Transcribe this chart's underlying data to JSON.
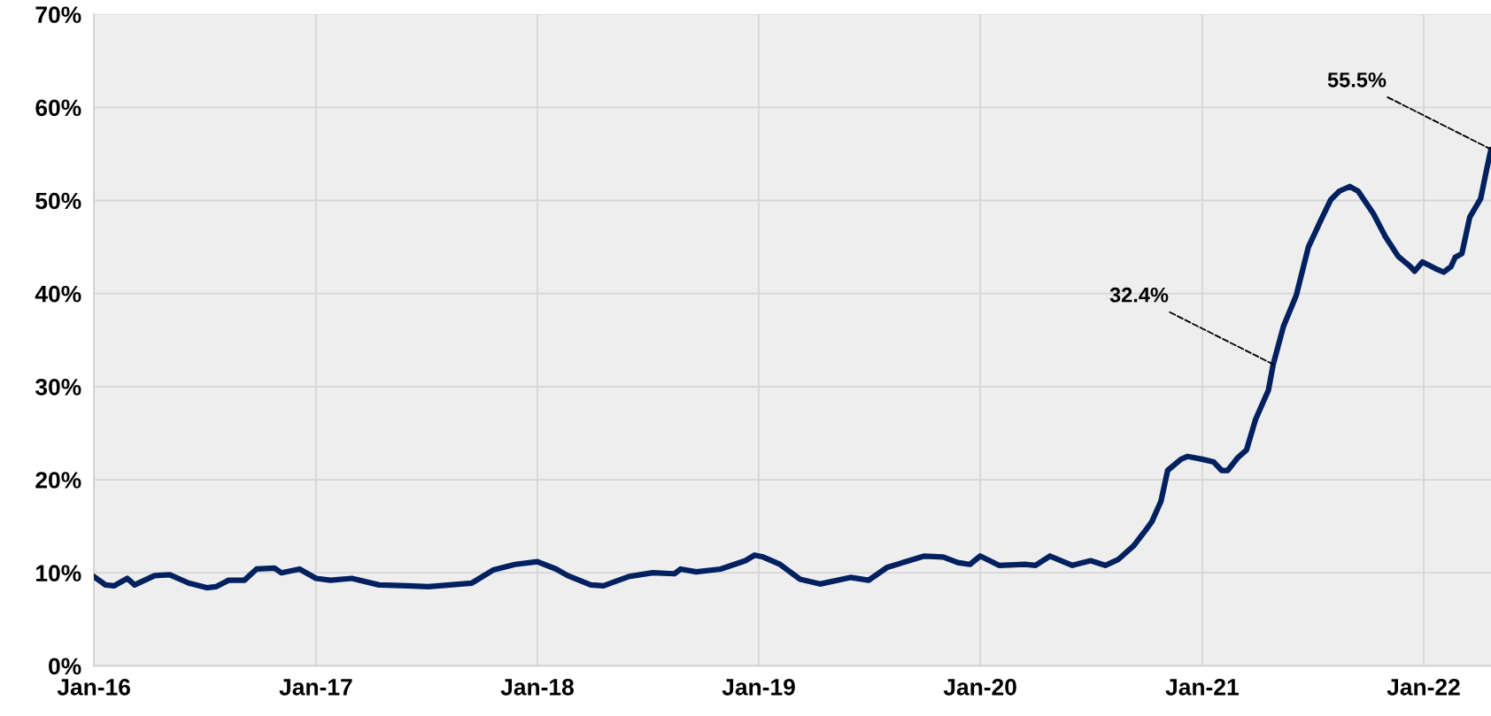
{
  "chart_data": {
    "type": "line",
    "x": [
      "2016-01-01",
      "2016-01-20",
      "2016-02-03",
      "2016-02-25",
      "2016-03-08",
      "2016-04-10",
      "2016-05-05",
      "2016-06-05",
      "2016-07-05",
      "2016-07-20",
      "2016-08-10",
      "2016-09-05",
      "2016-09-25",
      "2016-10-25",
      "2016-11-05",
      "2016-12-05",
      "2017-01-01",
      "2017-01-25",
      "2017-03-01",
      "2017-04-15",
      "2017-06-01",
      "2017-07-05",
      "2017-08-10",
      "2017-09-15",
      "2017-10-20",
      "2017-11-25",
      "2018-01-01",
      "2018-02-01",
      "2018-02-20",
      "2018-03-30",
      "2018-04-20",
      "2018-06-01",
      "2018-07-10",
      "2018-08-15",
      "2018-08-25",
      "2018-09-20",
      "2018-10-30",
      "2018-12-10",
      "2018-12-25",
      "2019-01-08",
      "2019-02-05",
      "2019-03-10",
      "2019-04-12",
      "2019-06-01",
      "2019-07-01",
      "2019-08-01",
      "2019-10-01",
      "2019-11-01",
      "2019-11-25",
      "2019-12-15",
      "2020-01-01",
      "2020-02-01",
      "2020-03-15",
      "2020-04-01",
      "2020-04-25",
      "2020-06-01",
      "2020-07-01",
      "2020-07-25",
      "2020-08-15",
      "2020-09-10",
      "2020-10-01",
      "2020-10-10",
      "2020-10-25",
      "2020-11-05",
      "2020-11-27",
      "2020-12-08",
      "2021-01-01",
      "2021-01-20",
      "2021-02-02",
      "2021-02-12",
      "2021-03-01",
      "2021-03-15",
      "2021-03-30",
      "2021-04-20",
      "2021-04-28",
      "2021-05-15",
      "2021-06-05",
      "2021-06-25",
      "2021-07-15",
      "2021-08-01",
      "2021-08-15",
      "2021-09-01",
      "2021-09-15",
      "2021-10-10",
      "2021-10-30",
      "2021-11-20",
      "2021-12-10",
      "2021-12-17",
      "2021-12-30",
      "2022-01-20",
      "2022-02-03",
      "2022-02-15",
      "2022-02-22",
      "2022-03-05",
      "2022-03-18",
      "2022-04-05",
      "2022-04-15",
      "2022-04-22"
    ],
    "series": [
      {
        "color": "#002060",
        "values": [
          9.6,
          8.7,
          8.6,
          9.4,
          8.7,
          9.7,
          9.8,
          8.9,
          8.4,
          8.5,
          9.2,
          9.2,
          10.4,
          10.5,
          10.0,
          10.4,
          9.4,
          9.2,
          9.4,
          8.7,
          8.6,
          8.5,
          8.7,
          8.9,
          10.3,
          10.9,
          11.2,
          10.4,
          9.7,
          8.7,
          8.6,
          9.6,
          10.0,
          9.9,
          10.4,
          10.1,
          10.4,
          11.3,
          11.9,
          11.7,
          10.9,
          9.3,
          8.8,
          9.5,
          9.2,
          10.6,
          11.8,
          11.7,
          11.1,
          10.9,
          11.8,
          10.8,
          10.9,
          10.8,
          11.8,
          10.8,
          11.3,
          10.8,
          11.4,
          12.9,
          14.7,
          15.5,
          17.7,
          21.0,
          22.2,
          22.5,
          22.2,
          21.9,
          21.0,
          21.0,
          22.4,
          23.2,
          26.5,
          29.6,
          32.4,
          36.5,
          39.8,
          45.0,
          47.8,
          50.1,
          51.0,
          51.5,
          51.0,
          48.6,
          46.1,
          44.0,
          42.9,
          42.4,
          43.4,
          42.7,
          42.3,
          42.9,
          43.9,
          44.3,
          48.2,
          50.2,
          53.4,
          55.5
        ]
      }
    ],
    "xlim": [
      "2016-01-01",
      "2022-04-22"
    ],
    "xticks": [
      {
        "value": "2016-01-01",
        "label": "Jan-16"
      },
      {
        "value": "2017-01-01",
        "label": "Jan-17"
      },
      {
        "value": "2018-01-01",
        "label": "Jan-18"
      },
      {
        "value": "2019-01-01",
        "label": "Jan-19"
      },
      {
        "value": "2020-01-01",
        "label": "Jan-20"
      },
      {
        "value": "2021-01-01",
        "label": "Jan-21"
      },
      {
        "value": "2022-01-01",
        "label": "Jan-22"
      }
    ],
    "ylim": [
      0,
      70
    ],
    "yticks": [
      {
        "value": 0,
        "label": "0%"
      },
      {
        "value": 10,
        "label": "10%"
      },
      {
        "value": 20,
        "label": "20%"
      },
      {
        "value": 30,
        "label": "30%"
      },
      {
        "value": 40,
        "label": "40%"
      },
      {
        "value": 50,
        "label": "50%"
      },
      {
        "value": 60,
        "label": "60%"
      },
      {
        "value": 70,
        "label": "70%"
      }
    ],
    "grid": true,
    "legend": false,
    "annotations": [
      {
        "text": "32.4%",
        "x": "2021-04-28",
        "y": 32.4
      },
      {
        "text": "55.5%",
        "x": "2022-04-22",
        "y": 55.5
      }
    ]
  }
}
